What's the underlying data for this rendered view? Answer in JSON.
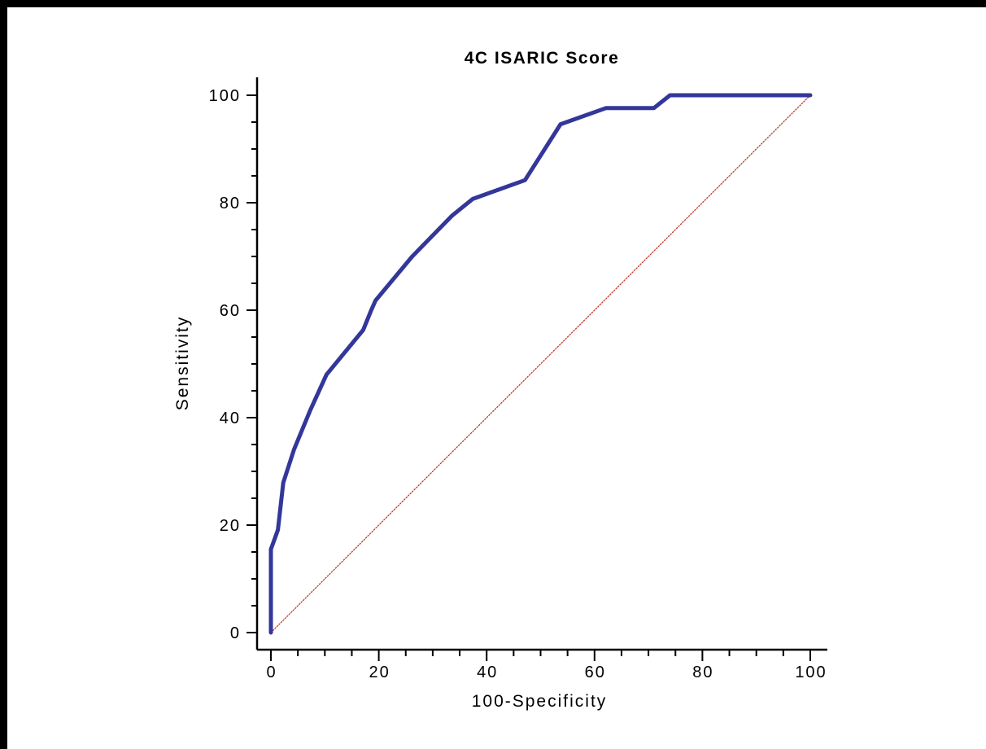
{
  "chart_data": {
    "type": "line",
    "title": "4C ISARIC Score",
    "xlabel": "100-Specificity",
    "ylabel": "Sensitivity",
    "xlim": [
      0,
      100
    ],
    "ylim": [
      0,
      100
    ],
    "xticks": [
      0,
      20,
      40,
      60,
      80,
      100
    ],
    "yticks": [
      0,
      20,
      40,
      60,
      80,
      100
    ],
    "xtick_labels": [
      "0",
      "20",
      "40",
      "60",
      "80",
      "100"
    ],
    "ytick_labels": [
      "0",
      "20",
      "40",
      "60",
      "80",
      "100"
    ],
    "grid": false,
    "series": [
      {
        "color": "#33379a",
        "x": [
          0,
          0,
          1.3,
          2.3,
          4.3,
          7.3,
          10.3,
          17.1,
          18.6,
          19.4,
          26.2,
          33.6,
          37.4,
          47.1,
          53.7,
          62.1,
          71.0,
          74.0,
          100
        ],
        "y": [
          0,
          15.5,
          19.1,
          27.9,
          34.1,
          41.4,
          48.0,
          56.3,
          60.0,
          61.8,
          70.0,
          77.6,
          80.7,
          84.2,
          94.6,
          97.6,
          97.6,
          100,
          100
        ]
      },
      {
        "color": "#c0392b",
        "style": "dotted",
        "x": [
          0,
          100
        ],
        "y": [
          0,
          100
        ]
      }
    ]
  }
}
